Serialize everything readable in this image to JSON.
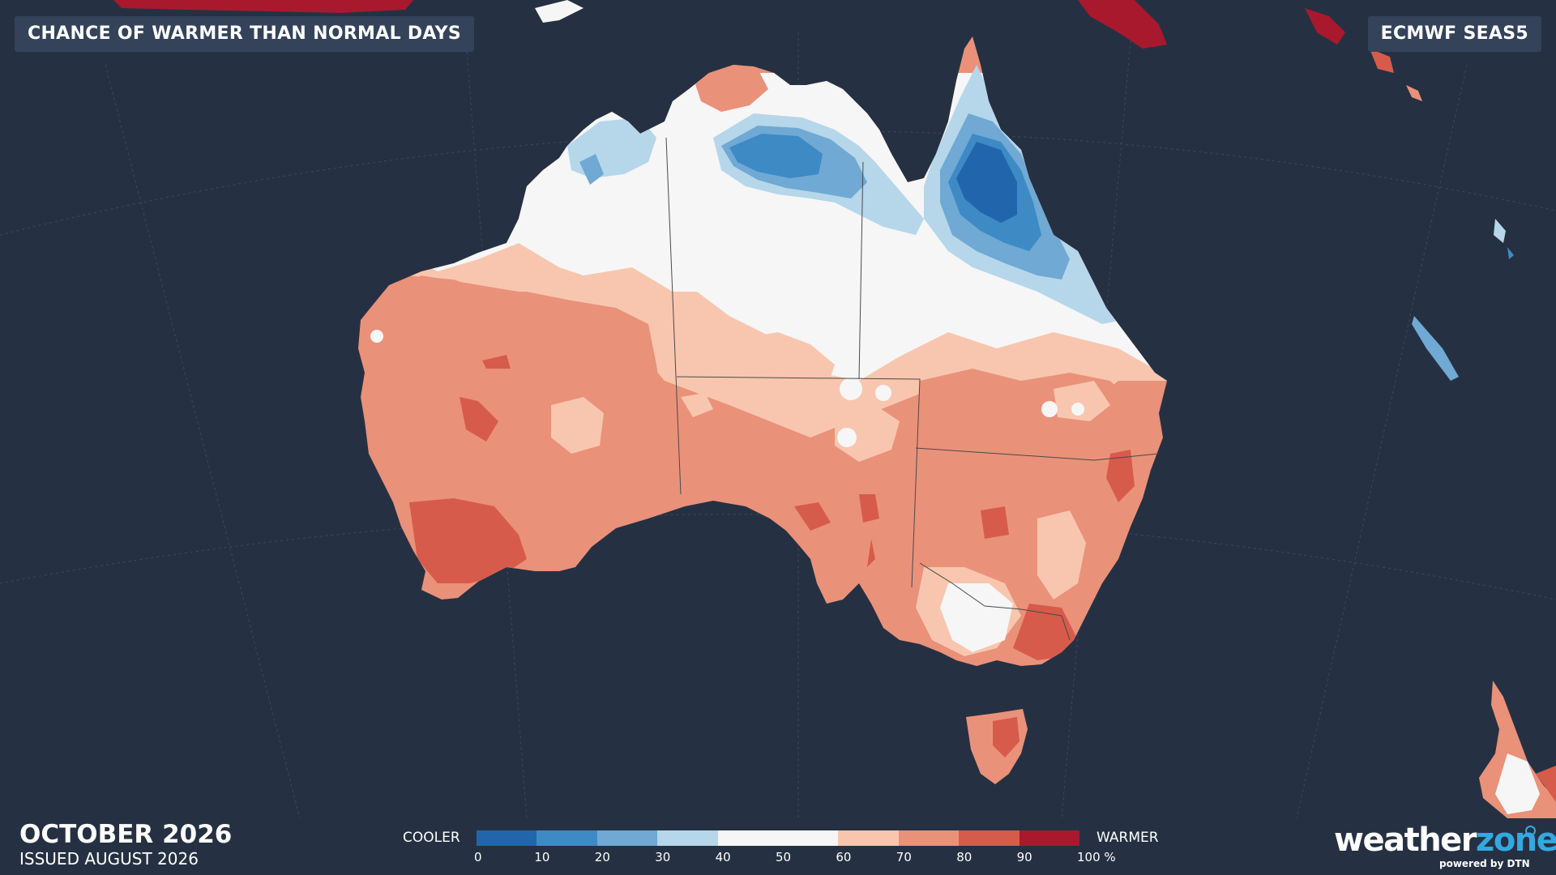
{
  "header": {
    "title": "CHANCE OF WARMER THAN NORMAL DAYS",
    "model": "ECMWF SEAS5"
  },
  "footer": {
    "month": "OCTOBER 2026",
    "issued": "ISSUED AUGUST 2026"
  },
  "legend": {
    "cooler_label": "COOLER",
    "warmer_label": "WARMER",
    "ticks": [
      "0",
      "10",
      "20",
      "30",
      "40",
      "50",
      "60",
      "70",
      "80",
      "90",
      "100 %"
    ],
    "colors": [
      "#2166ac",
      "#3d8ac5",
      "#6fa9d4",
      "#b6d6ea",
      "#f6f6f6",
      "#f6f6f6",
      "#f8c6ae",
      "#ea917a",
      "#d75b4b",
      "#a8192e"
    ]
  },
  "map": {
    "region": "Australia",
    "colors": {
      "ocean": "#253142",
      "c60_70": "#f8c6ae",
      "c70_80": "#ea917a",
      "c80_90": "#d75b4b",
      "c90_100": "#a8192e",
      "c40_60": "#f6f6f6",
      "c30_40": "#b6d6ea",
      "c20_30": "#6fa9d4",
      "c10_20": "#3d8ac5",
      "c0_10": "#2166ac"
    }
  },
  "brand": {
    "name_part1": "weather",
    "name_part2": "zone",
    "tagline": "powered by DTN"
  }
}
